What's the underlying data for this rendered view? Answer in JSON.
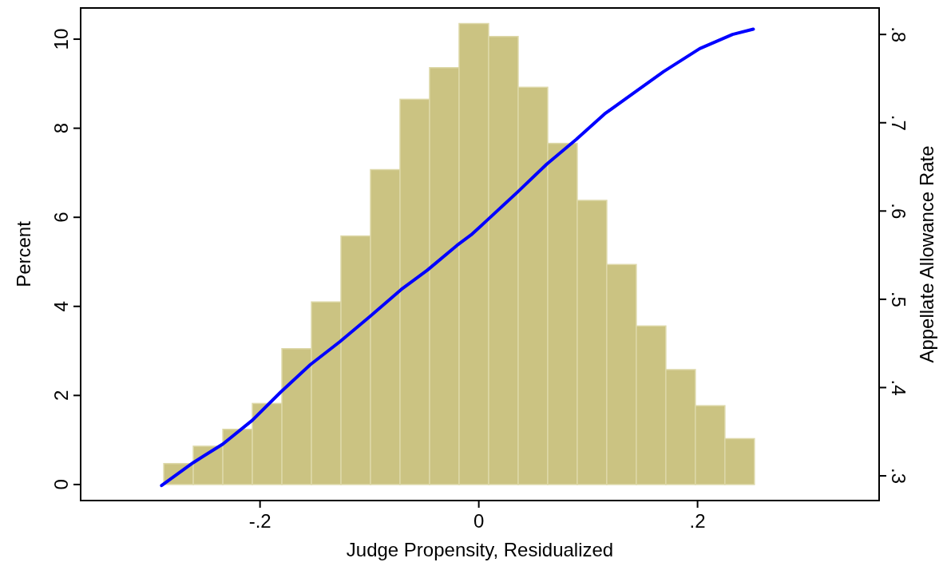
{
  "chart_data": {
    "type": "histogram",
    "xlabel": "Judge Propensity, Residualized",
    "ylabel": "Percent",
    "y2label": "Appellate Allowance Rate",
    "xlim": [
      -0.364,
      0.366
    ],
    "xticks": [
      {
        "value": -0.2,
        "label": "-.2"
      },
      0,
      {
        "value": 0.2,
        "label": ".2"
      }
    ],
    "ylim": [
      -0.36,
      10.7
    ],
    "yticks": [
      0,
      2,
      4,
      6,
      8,
      10
    ],
    "y2lim": [
      0.272,
      0.83
    ],
    "y2ticks": [
      {
        "value": 0.3,
        "label": ".3"
      },
      {
        "value": 0.4,
        "label": ".4"
      },
      {
        "value": 0.5,
        "label": ".5"
      },
      {
        "value": 0.6,
        "label": ".6"
      },
      {
        "value": 0.7,
        "label": ".7"
      },
      {
        "value": 0.8,
        "label": ".8"
      }
    ],
    "grid": false,
    "series": [
      {
        "color": "#cbc382",
        "bins": [
          -0.288,
          -0.261,
          -0.234,
          -0.207,
          -0.18,
          -0.153,
          -0.126,
          -0.099,
          -0.072,
          -0.045,
          -0.018,
          0.009,
          0.036,
          0.063,
          0.09,
          0.117,
          0.144,
          0.171,
          0.198,
          0.225,
          0.252
        ],
        "values": [
          0.47,
          0.86,
          1.24,
          1.82,
          3.05,
          4.1,
          5.58,
          7.07,
          8.65,
          9.36,
          10.35,
          10.06,
          8.92,
          7.66,
          6.38,
          4.94,
          3.56,
          2.58,
          1.77,
          1.03
        ]
      },
      {
        "type": "line",
        "axis": "y2",
        "color": "#0000ff",
        "x": [
          -0.29,
          -0.261,
          -0.234,
          -0.207,
          -0.181,
          -0.154,
          -0.127,
          -0.1,
          -0.071,
          -0.047,
          -0.02,
          -0.007,
          0.001,
          0.008,
          0.035,
          0.062,
          0.089,
          0.115,
          0.142,
          0.169,
          0.202,
          0.232,
          0.251
        ],
        "values": [
          0.289,
          0.315,
          0.336,
          0.363,
          0.395,
          0.426,
          0.452,
          0.48,
          0.511,
          0.533,
          0.561,
          0.573,
          0.582,
          0.59,
          0.621,
          0.653,
          0.681,
          0.71,
          0.734,
          0.758,
          0.784,
          0.8,
          0.806
        ]
      }
    ]
  }
}
